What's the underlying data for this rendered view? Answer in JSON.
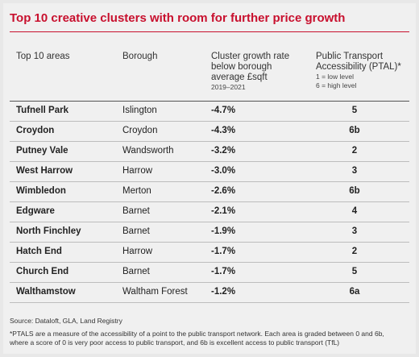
{
  "title": "Top 10 creative clusters with room for further price growth",
  "headers": {
    "area": "Top 10 areas",
    "borough": "Borough",
    "rate_line1": "Cluster growth rate",
    "rate_line2": "below borough",
    "rate_line3": "average £sqft",
    "rate_sub": "2019–2021",
    "ptal_line1": "Public Transport",
    "ptal_line2": "Accessibility (PTAL)*",
    "ptal_sub1": "1 = low level",
    "ptal_sub2": "6 = high level"
  },
  "rows": [
    {
      "area": "Tufnell Park",
      "borough": "Islington",
      "rate": "-4.7%",
      "ptal": "5"
    },
    {
      "area": "Croydon",
      "borough": "Croydon",
      "rate": "-4.3%",
      "ptal": "6b"
    },
    {
      "area": "Putney Vale",
      "borough": "Wandsworth",
      "rate": "-3.2%",
      "ptal": "2"
    },
    {
      "area": "West Harrow",
      "borough": "Harrow",
      "rate": "-3.0%",
      "ptal": "3"
    },
    {
      "area": "Wimbledon",
      "borough": "Merton",
      "rate": "-2.6%",
      "ptal": "6b"
    },
    {
      "area": "Edgware",
      "borough": "Barnet",
      "rate": "-2.1%",
      "ptal": "4"
    },
    {
      "area": "North Finchley",
      "borough": "Barnet",
      "rate": "-1.9%",
      "ptal": "3"
    },
    {
      "area": "Hatch End",
      "borough": "Harrow",
      "rate": "-1.7%",
      "ptal": "2"
    },
    {
      "area": "Church End",
      "borough": "Barnet",
      "rate": "-1.7%",
      "ptal": "5"
    },
    {
      "area": "Walthamstow",
      "borough": "Waltham Forest",
      "rate": "-1.2%",
      "ptal": "6a"
    }
  ],
  "source": "Source: Dataloft, GLA, Land Registry",
  "footnote_line1": "*PTALS are a measure of the accessibility of a point to the public transport network. Each area is graded between 0 and 6b,",
  "footnote_line2": "where a score of 0 is very poor access to public transport, and 6b is excellent access to public transport (TfL)"
}
